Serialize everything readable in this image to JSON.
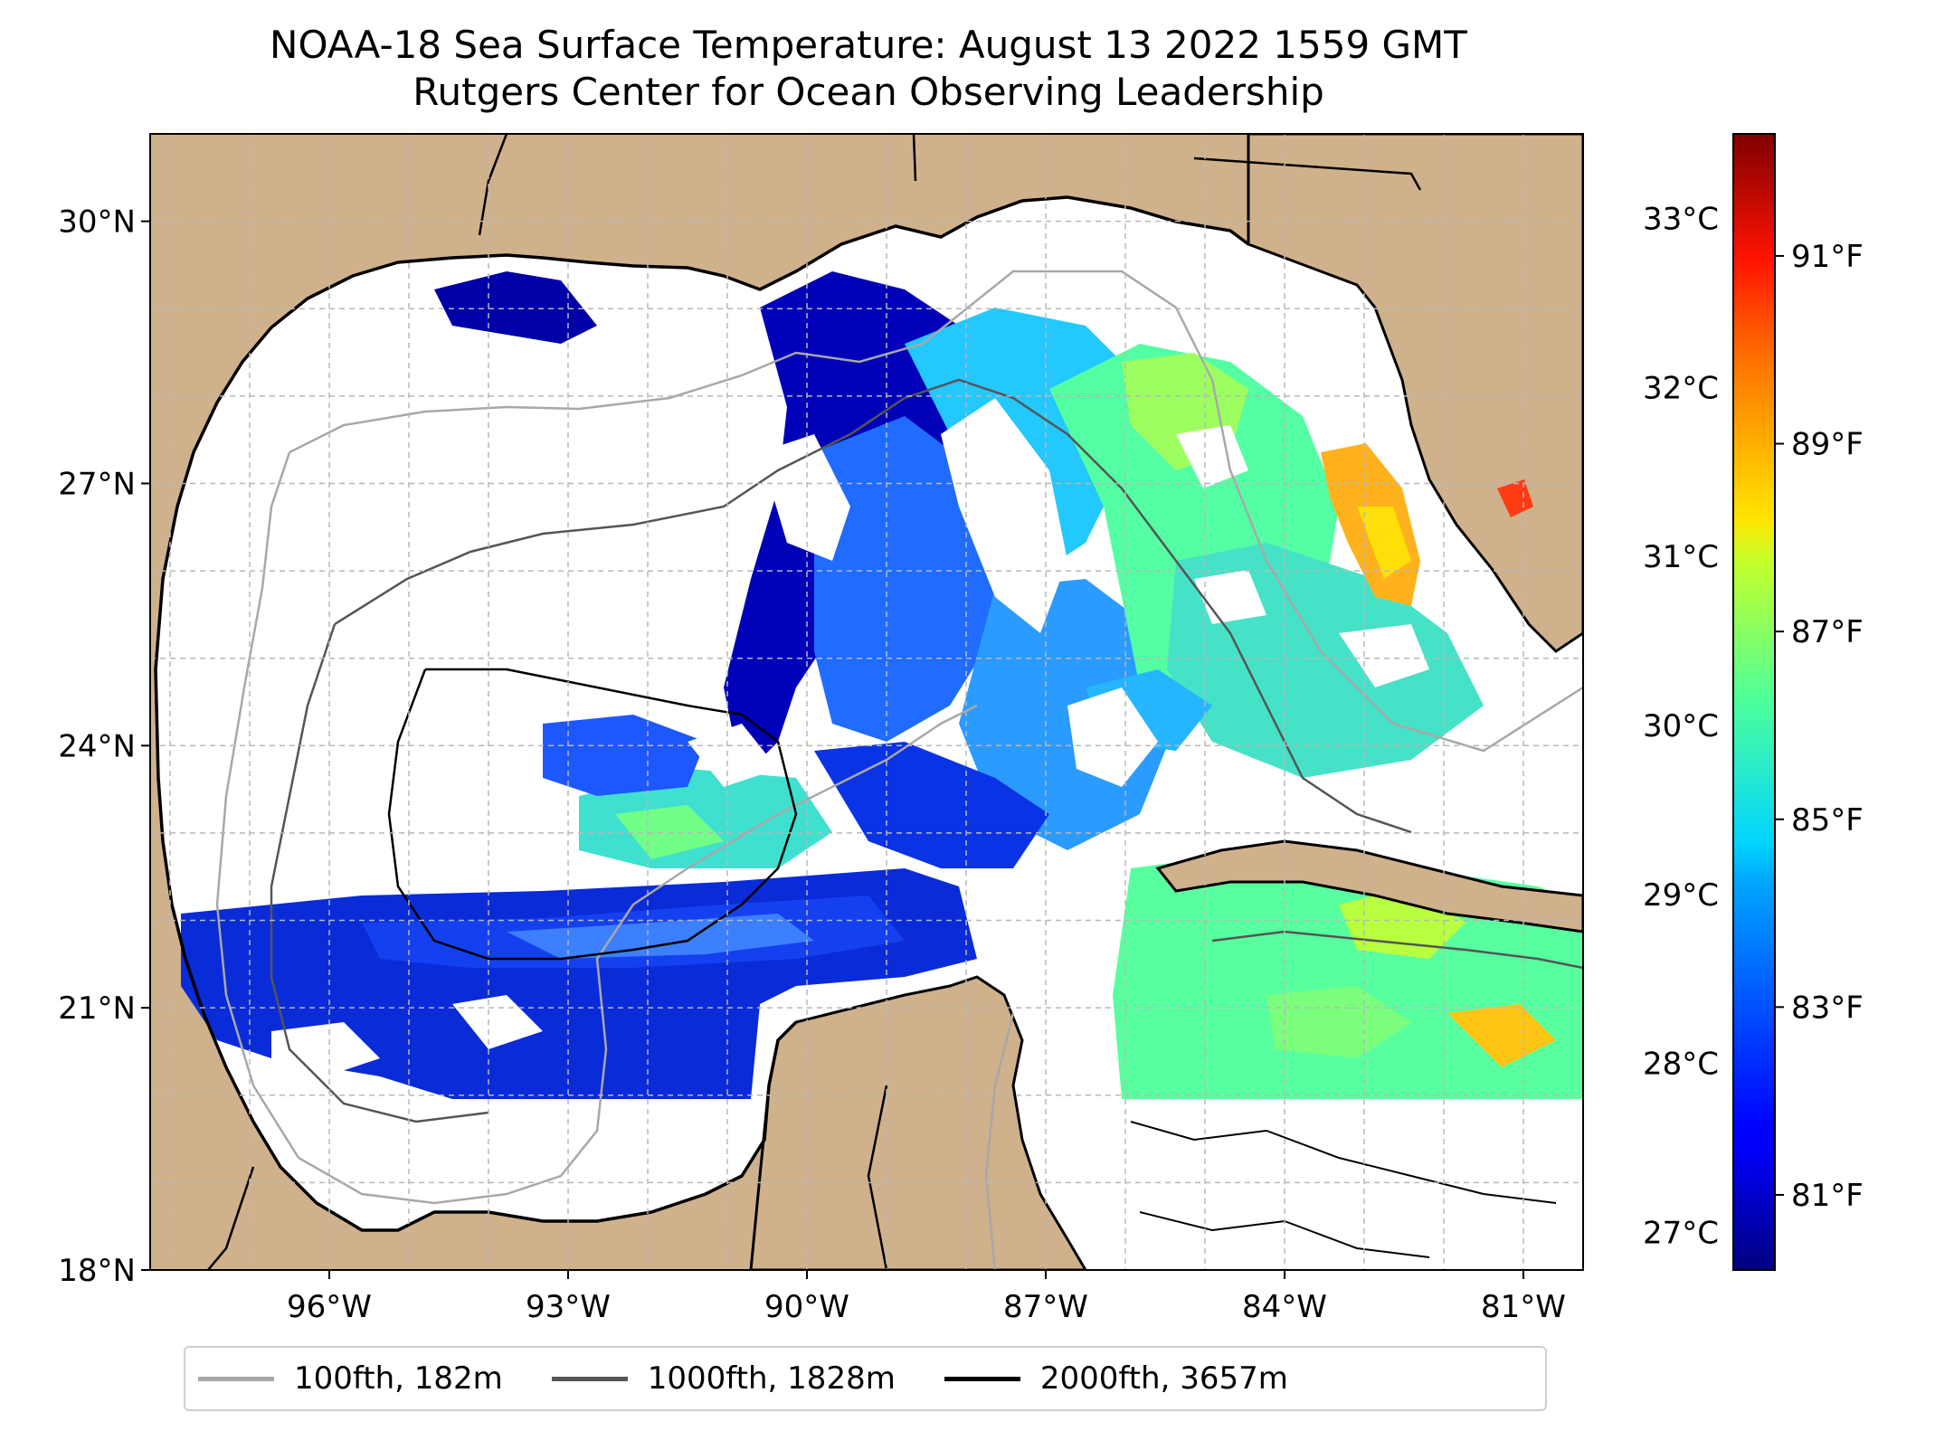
{
  "title": {
    "line1": "NOAA-18 Sea Surface Temperature: August 13 2022 1559 GMT",
    "line2": "Rutgers Center for Ocean Observing Leadership"
  },
  "map": {
    "lat_ticks": [
      {
        "value": 30,
        "label": "30°N"
      },
      {
        "value": 27,
        "label": "27°N"
      },
      {
        "value": 24,
        "label": "24°N"
      },
      {
        "value": 21,
        "label": "21°N"
      },
      {
        "value": 18,
        "label": "18°N"
      }
    ],
    "lon_ticks": [
      {
        "value": -96,
        "label": "96°W"
      },
      {
        "value": -93,
        "label": "93°W"
      },
      {
        "value": -90,
        "label": "90°W"
      },
      {
        "value": -87,
        "label": "87°W"
      },
      {
        "value": -84,
        "label": "84°W"
      },
      {
        "value": -81,
        "label": "81°W"
      }
    ],
    "lat_range": [
      18,
      31
    ],
    "lon_range": [
      -98.25,
      -80.25
    ],
    "gridlines": true,
    "colors": {
      "land": "#cfb18b",
      "ocean_nodata": "#ffffff",
      "coast": "#000000"
    }
  },
  "colorbar": {
    "colormap": "jet",
    "celsius_ticks": [
      {
        "value": 33,
        "label": "33°C"
      },
      {
        "value": 32,
        "label": "32°C"
      },
      {
        "value": 31,
        "label": "31°C"
      },
      {
        "value": 30,
        "label": "30°C"
      },
      {
        "value": 29,
        "label": "29°C"
      },
      {
        "value": 28,
        "label": "28°C"
      },
      {
        "value": 27,
        "label": "27°C"
      }
    ],
    "fahrenheit_ticks": [
      {
        "value": 91,
        "label": "91°F"
      },
      {
        "value": 89,
        "label": "89°F"
      },
      {
        "value": 87,
        "label": "87°F"
      },
      {
        "value": 85,
        "label": "85°F"
      },
      {
        "value": 83,
        "label": "83°F"
      },
      {
        "value": 81,
        "label": "81°F"
      }
    ],
    "range_f": [
      80.2,
      92.3
    ]
  },
  "legend": [
    {
      "label": "100fth, 182m",
      "color": "#a8a8a8"
    },
    {
      "label": "1000fth, 1828m",
      "color": "#555555"
    },
    {
      "label": "2000fth, 3657m",
      "color": "#000000"
    }
  ]
}
